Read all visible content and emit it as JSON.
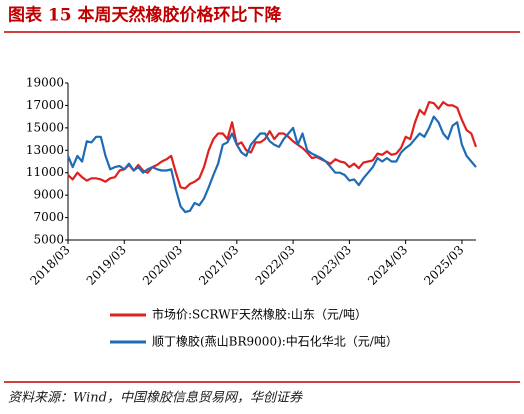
{
  "chart_data": {
    "type": "line",
    "title": "图表 15   本周天然橡胶价格环比下降",
    "source": "资料来源：Wind，中国橡胶信息贸易网，华创证券",
    "categories": [
      "2018/03",
      null,
      null,
      null,
      null,
      null,
      null,
      null,
      null,
      null,
      null,
      null,
      "2019/03",
      null,
      null,
      null,
      null,
      null,
      null,
      null,
      null,
      null,
      null,
      null,
      "2020/03",
      null,
      null,
      null,
      null,
      null,
      null,
      null,
      null,
      null,
      null,
      null,
      "2021/03",
      null,
      null,
      null,
      null,
      null,
      null,
      null,
      null,
      null,
      null,
      null,
      "2022/03",
      null,
      null,
      null,
      null,
      null,
      null,
      null,
      null,
      null,
      null,
      null,
      "2023/03",
      null,
      null,
      null,
      null,
      null,
      null,
      null,
      null,
      null,
      null,
      null,
      "2024/03",
      null,
      null,
      null,
      null,
      null,
      null,
      null,
      null,
      null,
      null,
      null,
      "2025/03",
      null,
      null,
      null
    ],
    "series": [
      {
        "name": "市场价:SCRWF天然橡胶:山东（元/吨）",
        "color": "#e02020",
        "values": [
          10800,
          10400,
          11000,
          10600,
          10300,
          10500,
          10500,
          10400,
          10200,
          10500,
          10600,
          11200,
          11300,
          11700,
          11200,
          11700,
          11200,
          11000,
          11500,
          11700,
          12000,
          12200,
          12500,
          11000,
          9700,
          9600,
          10000,
          10200,
          10500,
          11500,
          13000,
          14000,
          14500,
          14500,
          14000,
          15500,
          13500,
          13700,
          13000,
          12800,
          13700,
          13700,
          14000,
          14700,
          14000,
          14500,
          14500,
          14200,
          13800,
          13500,
          13200,
          12800,
          12300,
          12400,
          12200,
          12000,
          11800,
          12200,
          12000,
          11900,
          11500,
          11800,
          11400,
          11900,
          12000,
          12100,
          12700,
          12600,
          12900,
          12600,
          12700,
          13200,
          14200,
          14000,
          15500,
          16600,
          16200,
          17300,
          17200,
          16700,
          17300,
          17000,
          17000,
          16800,
          15700,
          14800,
          14500,
          13300
        ]
      },
      {
        "name": "顺丁橡胶(燕山BR9000):中石化华北（元/吨）",
        "color": "#1f6bb5",
        "values": [
          12500,
          11500,
          12500,
          12000,
          13800,
          13700,
          14200,
          14200,
          12500,
          11300,
          11500,
          11600,
          11300,
          11800,
          11200,
          11500,
          11000,
          11300,
          11500,
          11300,
          11200,
          11200,
          11300,
          9500,
          8000,
          7500,
          7600,
          8300,
          8100,
          8700,
          9700,
          10800,
          11800,
          13500,
          13700,
          14500,
          13500,
          12800,
          12500,
          13500,
          14000,
          14500,
          14500,
          13800,
          13500,
          13300,
          14000,
          14500,
          15000,
          13500,
          14500,
          13000,
          12700,
          12500,
          12300,
          12000,
          11500,
          11000,
          11000,
          10800,
          10300,
          10400,
          9900,
          10500,
          11000,
          11500,
          12300,
          12000,
          12300,
          12000,
          12000,
          12800,
          13200,
          13500,
          14000,
          14500,
          14200,
          15000,
          16000,
          15500,
          14500,
          14000,
          15200,
          15500,
          13500,
          12500,
          12000,
          11500
        ]
      }
    ],
    "ylim": [
      5000,
      19000
    ],
    "yticks": [
      5000,
      7000,
      9000,
      11000,
      13000,
      15000,
      17000,
      19000
    ],
    "grid": false
  }
}
